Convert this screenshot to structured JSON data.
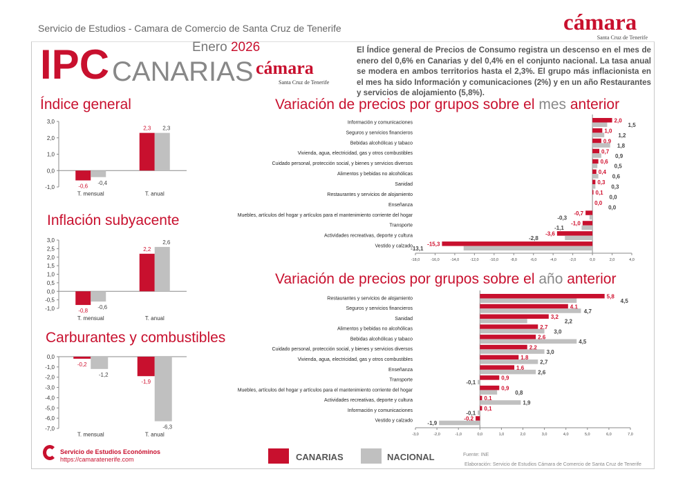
{
  "header": {
    "org": "Servicio de Estudios - Camara de Comercio de Santa Cruz de Tenerife",
    "logo_text": "cámara",
    "logo_sub": "Santa Cruz de Tenerife"
  },
  "banner": {
    "ipc": "IPC",
    "canarias": "CANARIAS",
    "month": "Enero",
    "year": "2026",
    "logo_text": "cámara",
    "logo_sub": "Santa Cruz de Tenerife"
  },
  "summary": "El Índice general de Precios de Consumo registra un descenso en el mes de enero del 0,6% en Canarias y del 0,4% en el conjunto nacional. La tasa anual se modera en ambos territorios hasta el 2,3%. El grupo más inflacionista en el mes ha sido Información y comunicaciones (2%) y en un año Restaurantes y servicios de alojamiento (5,8%).",
  "colors": {
    "canarias": "#c8102e",
    "nacional": "#c0c0c0"
  },
  "legend": {
    "canarias": "CANARIAS",
    "nacional": "NACIONAL"
  },
  "footer": {
    "service": "Servicio de Estudios Económinos",
    "url": "https://camaratenerife.com",
    "source": "Fuente: INE",
    "elaboration": "Elaboración: Servicio de Estudios Cámara de Comercio de Santa Cruz de Tenerife"
  },
  "chart_data": [
    {
      "type": "bar",
      "title": "Índice general",
      "categories": [
        "T. mensual",
        "T. anual"
      ],
      "series": [
        {
          "name": "CANARIAS",
          "values": [
            -0.6,
            2.3
          ]
        },
        {
          "name": "NACIONAL",
          "values": [
            -0.4,
            2.3
          ]
        }
      ],
      "ylim": [
        -1,
        3
      ],
      "yticks": [
        "3,0",
        "2,0",
        "1,0",
        "0,0",
        "-1,0"
      ]
    },
    {
      "type": "bar",
      "title": "Inflación subyacente",
      "categories": [
        "T. mensual",
        "T. anual"
      ],
      "series": [
        {
          "name": "CANARIAS",
          "values": [
            -0.8,
            2.2
          ]
        },
        {
          "name": "NACIONAL",
          "values": [
            -0.6,
            2.6
          ]
        }
      ],
      "ylim": [
        -1,
        3
      ],
      "yticks": [
        "3,0",
        "2,5",
        "2,0",
        "1,5",
        "1,0",
        "0,5",
        "0,0",
        "-0,5",
        "-1,0"
      ]
    },
    {
      "type": "bar",
      "title": "Carburantes y combustibles",
      "categories": [
        "T. mensual",
        "T. anual"
      ],
      "series": [
        {
          "name": "CANARIAS",
          "values": [
            -0.2,
            -1.9
          ]
        },
        {
          "name": "NACIONAL",
          "values": [
            -1.2,
            -6.3
          ]
        }
      ],
      "ylim": [
        -7,
        0
      ],
      "yticks": [
        "0,0",
        "-1,0",
        "-2,0",
        "-3,0",
        "-4,0",
        "-5,0",
        "-6,0",
        "-7,0"
      ]
    },
    {
      "type": "bar",
      "orientation": "horizontal",
      "title": "Variación de precios por grupos sobre el",
      "title_grey": "mes",
      "title_end": "anterior",
      "categories": [
        "Información y comunicaciones",
        "Seguros y servicios financieros",
        "Bebidas alcohólicas y tabaco",
        "Vivienda, agua, electricidad, gas y otros combustibles",
        "Cuidado personal, protección social, y bienes y servicios diversos",
        "Alimentos y bebidas no alcohólicas",
        "Sanidad",
        "Restaurantes y servicios de alojamiento",
        "Enseñanza",
        "Muebles, artículos del hogar y artículos para el mantenimiento corriente del hogar",
        "Transporte",
        "Actividades recreativas, deporte y cultura",
        "Vestido y calzado"
      ],
      "series": [
        {
          "name": "CANARIAS",
          "values": [
            2.0,
            1.0,
            0.9,
            0.7,
            0.6,
            0.4,
            0.3,
            0.1,
            0.0,
            -0.7,
            -1.0,
            -3.6,
            -15.3
          ]
        },
        {
          "name": "NACIONAL",
          "values": [
            1.5,
            1.2,
            1.8,
            0.9,
            0.5,
            0.6,
            0.3,
            0.0,
            0.0,
            -0.3,
            -1.1,
            -2.8,
            -13.1
          ]
        }
      ],
      "xlim": [
        -18,
        4
      ],
      "xticks": [
        "-18,0",
        "-16,0",
        "-14,0",
        "-12,0",
        "-10,0",
        "-8,0",
        "-6,0",
        "-4,0",
        "-2,0",
        "0,0",
        "2,0",
        "4,0"
      ]
    },
    {
      "type": "bar",
      "orientation": "horizontal",
      "title": "Variación de precios por grupos sobre el",
      "title_grey": "año",
      "title_end": "anterior",
      "categories": [
        "Restaurantes y servicios de alojamiento",
        "Seguros y servicios financieros",
        "Sanidad",
        "Alimentos y bebidas no alcohólicas",
        "Bebidas alcohólicas y tabaco",
        "Cuidado personal, protección social, y bienes y servicios diversos",
        "Vivienda, agua, electricidad, gas y otros combustibles",
        "Enseñanza",
        "Transporte",
        "Muebles, artículos del hogar y artículos para el mantenimiento corriente del hogar",
        "Actividades recreativas, deporte y cultura",
        "Información y comunicaciones",
        "Vestido y calzado"
      ],
      "series": [
        {
          "name": "CANARIAS",
          "values": [
            5.8,
            4.1,
            3.2,
            2.7,
            2.6,
            2.2,
            1.8,
            1.6,
            0.9,
            0.9,
            0.1,
            0.1,
            -0.2
          ]
        },
        {
          "name": "NACIONAL",
          "values": [
            4.5,
            4.7,
            2.2,
            3.0,
            4.5,
            3.0,
            2.7,
            2.6,
            -0.1,
            0.8,
            1.9,
            -0.1,
            -1.9
          ]
        }
      ],
      "xlim": [
        -3,
        7
      ],
      "xticks": [
        "-3,0",
        "-2,0",
        "-1,0",
        "0,0",
        "1,0",
        "2,0",
        "3,0",
        "4,0",
        "5,0",
        "6,0",
        "7,0"
      ]
    }
  ]
}
